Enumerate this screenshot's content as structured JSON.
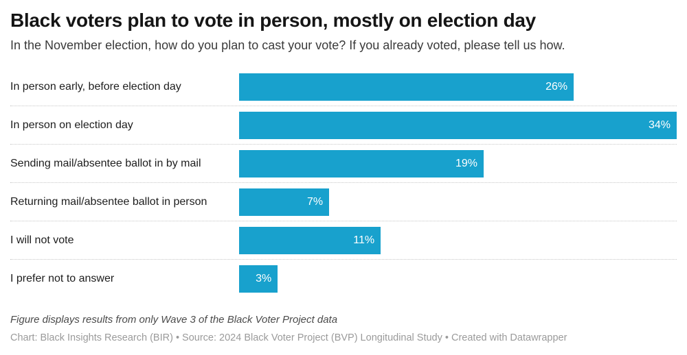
{
  "header": {
    "title": "Black voters plan to vote in person, mostly on election day",
    "subtitle": "In the November election, how do you plan to cast your vote? If you already voted, please tell us how."
  },
  "chart_data": {
    "type": "bar",
    "orientation": "horizontal",
    "categories": [
      "In person early, before election day",
      "In person on election day",
      "Sending mail/absentee ballot in by mail",
      "Returning mail/absentee ballot in person",
      "I will not vote",
      "I prefer not to answer"
    ],
    "values": [
      26,
      34,
      19,
      7,
      11,
      3
    ],
    "value_suffix": "%",
    "xlim": [
      0,
      34
    ],
    "bar_color": "#18a1cd",
    "value_label_color": "#ffffff",
    "value_label_position": "inside-right",
    "grid": false,
    "row_separator": "dotted",
    "legend": "none"
  },
  "footer": {
    "note": "Figure displays results from only Wave 3 of the Black Voter Project data",
    "credit": "Chart: Black Insights Research (BIR) • Source: 2024 Black Voter Project (BVP) Longitudinal Study • Created with Datawrapper"
  }
}
